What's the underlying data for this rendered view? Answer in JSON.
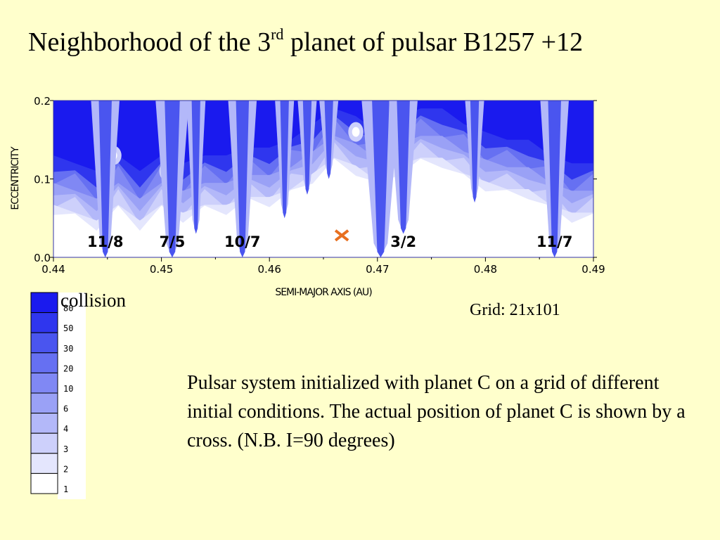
{
  "slide": {
    "title_pre": "Neighborhood of the 3",
    "title_sup": "rd",
    "title_post": " planet of pulsar B1257 +12",
    "grid_note": "Grid: 21x101",
    "description": "Pulsar system initialized with planet C on a grid of different initial conditions. The actual position of planet C is shown by a cross. (N.B. I=90 degrees)"
  },
  "colors": {
    "background": "#ffffcc",
    "collision": "#0000ee",
    "stable": "#ffffff",
    "cross": "#e87020"
  },
  "chart_data": {
    "type": "heatmap",
    "title": "",
    "xlabel": "SEMI-MAJOR AXIS (AU)",
    "ylabel": "ECCENTRICITY",
    "xlim": [
      0.44,
      0.49
    ],
    "ylim": [
      0.0,
      0.2
    ],
    "x_ticks": [
      0.44,
      0.45,
      0.46,
      0.47,
      0.48,
      0.49
    ],
    "x_tick_labels": [
      "0.44",
      "0.45",
      "0.46",
      "0.47",
      "0.48",
      "0.49"
    ],
    "y_ticks": [
      0.0,
      0.1,
      0.2
    ],
    "y_tick_labels": [
      "0.0",
      "0.1",
      "0.2"
    ],
    "grid_size": "21x101",
    "legend": {
      "top_label": "collision",
      "levels": [
        "80",
        "50",
        "30",
        "20",
        "10",
        "6",
        "4",
        "3",
        "2",
        "1"
      ],
      "colors": [
        "#1a1aee",
        "#2f36ee",
        "#4a55ef",
        "#6670f2",
        "#8088f4",
        "#9aa1f6",
        "#b3b8f9",
        "#cdd0fb",
        "#e4e6fd",
        "#ffffff"
      ]
    },
    "resonances": [
      {
        "label": "11/8",
        "a": 0.4448
      },
      {
        "label": "7/5",
        "a": 0.451
      },
      {
        "label": "10/7",
        "a": 0.4575
      },
      {
        "label": "3/2",
        "a": 0.4724
      },
      {
        "label": "11/7",
        "a": 0.4864
      }
    ],
    "planet_c": {
      "a": 0.4667,
      "e": 0.028
    },
    "stable_boundary": [
      {
        "a": 0.44,
        "e": 0.06
      },
      {
        "a": 0.442,
        "e": 0.05
      },
      {
        "a": 0.444,
        "e": 0.04
      },
      {
        "a": 0.446,
        "e": 0.06
      },
      {
        "a": 0.448,
        "e": 0.04
      },
      {
        "a": 0.45,
        "e": 0.06
      },
      {
        "a": 0.452,
        "e": 0.05
      },
      {
        "a": 0.454,
        "e": 0.06
      },
      {
        "a": 0.456,
        "e": 0.06
      },
      {
        "a": 0.458,
        "e": 0.07
      },
      {
        "a": 0.46,
        "e": 0.07
      },
      {
        "a": 0.462,
        "e": 0.08
      },
      {
        "a": 0.464,
        "e": 0.1
      },
      {
        "a": 0.466,
        "e": 0.12
      },
      {
        "a": 0.468,
        "e": 0.11
      },
      {
        "a": 0.47,
        "e": 0.09
      },
      {
        "a": 0.472,
        "e": 0.11
      },
      {
        "a": 0.474,
        "e": 0.12
      },
      {
        "a": 0.476,
        "e": 0.12
      },
      {
        "a": 0.478,
        "e": 0.1
      },
      {
        "a": 0.48,
        "e": 0.09
      },
      {
        "a": 0.482,
        "e": 0.08
      },
      {
        "a": 0.484,
        "e": 0.08
      },
      {
        "a": 0.486,
        "e": 0.06
      },
      {
        "a": 0.488,
        "e": 0.05
      },
      {
        "a": 0.49,
        "e": 0.05
      }
    ],
    "unstable_spikes": [
      {
        "a": 0.4448,
        "e_min": 0.0,
        "width": 0.0006
      },
      {
        "a": 0.451,
        "e_min": 0.0,
        "width": 0.0007
      },
      {
        "a": 0.4532,
        "e_min": 0.03,
        "width": 0.0004
      },
      {
        "a": 0.4575,
        "e_min": 0.0,
        "width": 0.0006
      },
      {
        "a": 0.4614,
        "e_min": 0.05,
        "width": 0.0004
      },
      {
        "a": 0.4635,
        "e_min": 0.08,
        "width": 0.0004
      },
      {
        "a": 0.4655,
        "e_min": 0.1,
        "width": 0.0004
      },
      {
        "a": 0.4703,
        "e_min": 0.0,
        "width": 0.0008
      },
      {
        "a": 0.4724,
        "e_min": 0.03,
        "width": 0.0006
      },
      {
        "a": 0.479,
        "e_min": 0.07,
        "width": 0.0004
      },
      {
        "a": 0.4864,
        "e_min": 0.0,
        "width": 0.0006
      }
    ],
    "stable_islands": [
      {
        "a": 0.4455,
        "e": 0.13,
        "r": 0.0008
      },
      {
        "a": 0.4505,
        "e": 0.11,
        "r": 0.0007
      },
      {
        "a": 0.4718,
        "e": 0.15,
        "r": 0.001
      },
      {
        "a": 0.468,
        "e": 0.16,
        "r": 0.0007
      }
    ]
  }
}
